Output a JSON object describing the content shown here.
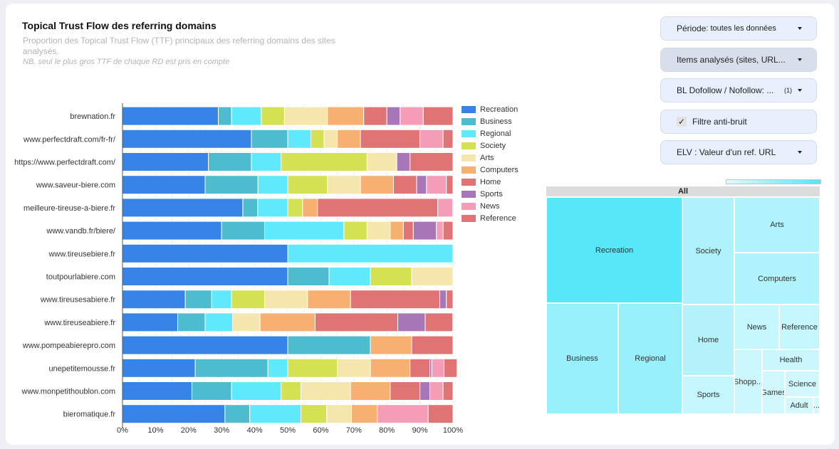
{
  "header": {
    "title": "Topical Trust Flow des referring domains",
    "subtitle": "Proportion des Topical Trust Flow (TTF) principaux des referring domains des sites analysés.",
    "note": "NB. seul le plus gros TTF de chaque RD est pris en compte"
  },
  "controls": {
    "periode_label": "Période",
    "periode_value": ": toutes les données",
    "items_label": "Items analysés (sites, URL...",
    "bl_label": "BL Dofollow / Nofollow: ...",
    "bl_badge": "(1)",
    "filtre_label": "Filtre anti-bruit",
    "filtre_checked": true,
    "elv_label": "ELV : Valeur d'un ref. URL"
  },
  "colors": {
    "Recreation": "#3784e8",
    "Business": "#4dbccf",
    "Regional": "#5eeafc",
    "Society": "#d4e153",
    "Arts": "#f5e6ad",
    "Computers": "#f7b06f",
    "Home": "#e07373",
    "Sports": "#a877b7",
    "News": "#f59cb7",
    "Reference": "#e07373"
  },
  "chart_data": [
    {
      "type": "bar",
      "orientation": "horizontal-stacked-100",
      "title": "Topical Trust Flow des referring domains",
      "xlabel": "",
      "ylabel": "",
      "xlim": [
        0,
        100
      ],
      "x_ticks": [
        "0%",
        "10%",
        "20%",
        "30%",
        "40%",
        "50%",
        "60%",
        "70%",
        "80%",
        "90%",
        "100%"
      ],
      "grid": true,
      "legend_position": "right",
      "categories": [
        "brewnation.fr",
        "www.perfectdraft.com/fr-fr/",
        "https://www.perfectdraft.com/",
        "www.saveur-biere.com",
        "meilleure-tireuse-a-biere.fr",
        "www.vandb.fr/biere/",
        "www.tireusebiere.fr",
        "toutpourlabiere.com",
        "www.tireusesabiere.fr",
        "www.tireuseabiere.fr",
        "www.pompeabierepro.com",
        "unepetitemousse.fr",
        "www.monpetithoublon.com",
        "bieromatique.fr"
      ],
      "series": [
        {
          "name": "Recreation",
          "values": [
            29,
            39,
            26,
            25,
            36.4,
            30,
            50,
            50,
            19,
            16.7,
            50,
            22,
            21,
            31
          ]
        },
        {
          "name": "Business",
          "values": [
            4,
            11,
            13,
            16,
            4.5,
            13,
            0,
            12.5,
            8,
            8.3,
            25,
            22,
            12,
            7.5
          ]
        },
        {
          "name": "Regional",
          "values": [
            9,
            7,
            9,
            9,
            9.1,
            24,
            50,
            12.5,
            6,
            8.3,
            0,
            6,
            15,
            15.5
          ]
        },
        {
          "name": "Society",
          "values": [
            7,
            4,
            26,
            12,
            4.5,
            7,
            0,
            12.5,
            10,
            0,
            0,
            15,
            6,
            7.8
          ]
        },
        {
          "name": "Arts",
          "values": [
            13,
            4,
            9,
            10,
            0,
            7,
            0,
            12.5,
            13,
            8.3,
            0,
            10,
            15,
            7.5
          ]
        },
        {
          "name": "Computers",
          "values": [
            11,
            7,
            0,
            10,
            4.5,
            4,
            0,
            0,
            13,
            16.7,
            12.5,
            12,
            12,
            7.8
          ]
        },
        {
          "name": "Home",
          "values": [
            7,
            18,
            0,
            7,
            36.4,
            3,
            0,
            0,
            27,
            25,
            0,
            6,
            9,
            0
          ]
        },
        {
          "name": "Sports",
          "values": [
            4,
            0,
            4,
            3,
            0,
            7,
            0,
            0,
            2,
            8.3,
            0,
            0.6,
            3,
            0
          ]
        },
        {
          "name": "News",
          "values": [
            7,
            7,
            0,
            6,
            4.5,
            2,
            0,
            0,
            0,
            0,
            0,
            3.7,
            4,
            15.4
          ]
        },
        {
          "name": "Reference",
          "values": [
            9,
            3,
            13,
            2,
            0,
            3,
            0,
            0,
            2,
            8.3,
            12.5,
            3.9,
            3,
            7.5
          ]
        }
      ]
    },
    {
      "type": "treemap",
      "root_label": "All",
      "cells": [
        {
          "label": "Recreation"
        },
        {
          "label": "Society"
        },
        {
          "label": "Arts"
        },
        {
          "label": "Computers"
        },
        {
          "label": "Business"
        },
        {
          "label": "Regional"
        },
        {
          "label": "Home"
        },
        {
          "label": "News"
        },
        {
          "label": "Reference"
        },
        {
          "label": "Health"
        },
        {
          "label": "Sports"
        },
        {
          "label": "Shopp..."
        },
        {
          "label": "Games"
        },
        {
          "label": "Science"
        },
        {
          "label": "Adult"
        },
        {
          "label": "..."
        }
      ]
    }
  ]
}
